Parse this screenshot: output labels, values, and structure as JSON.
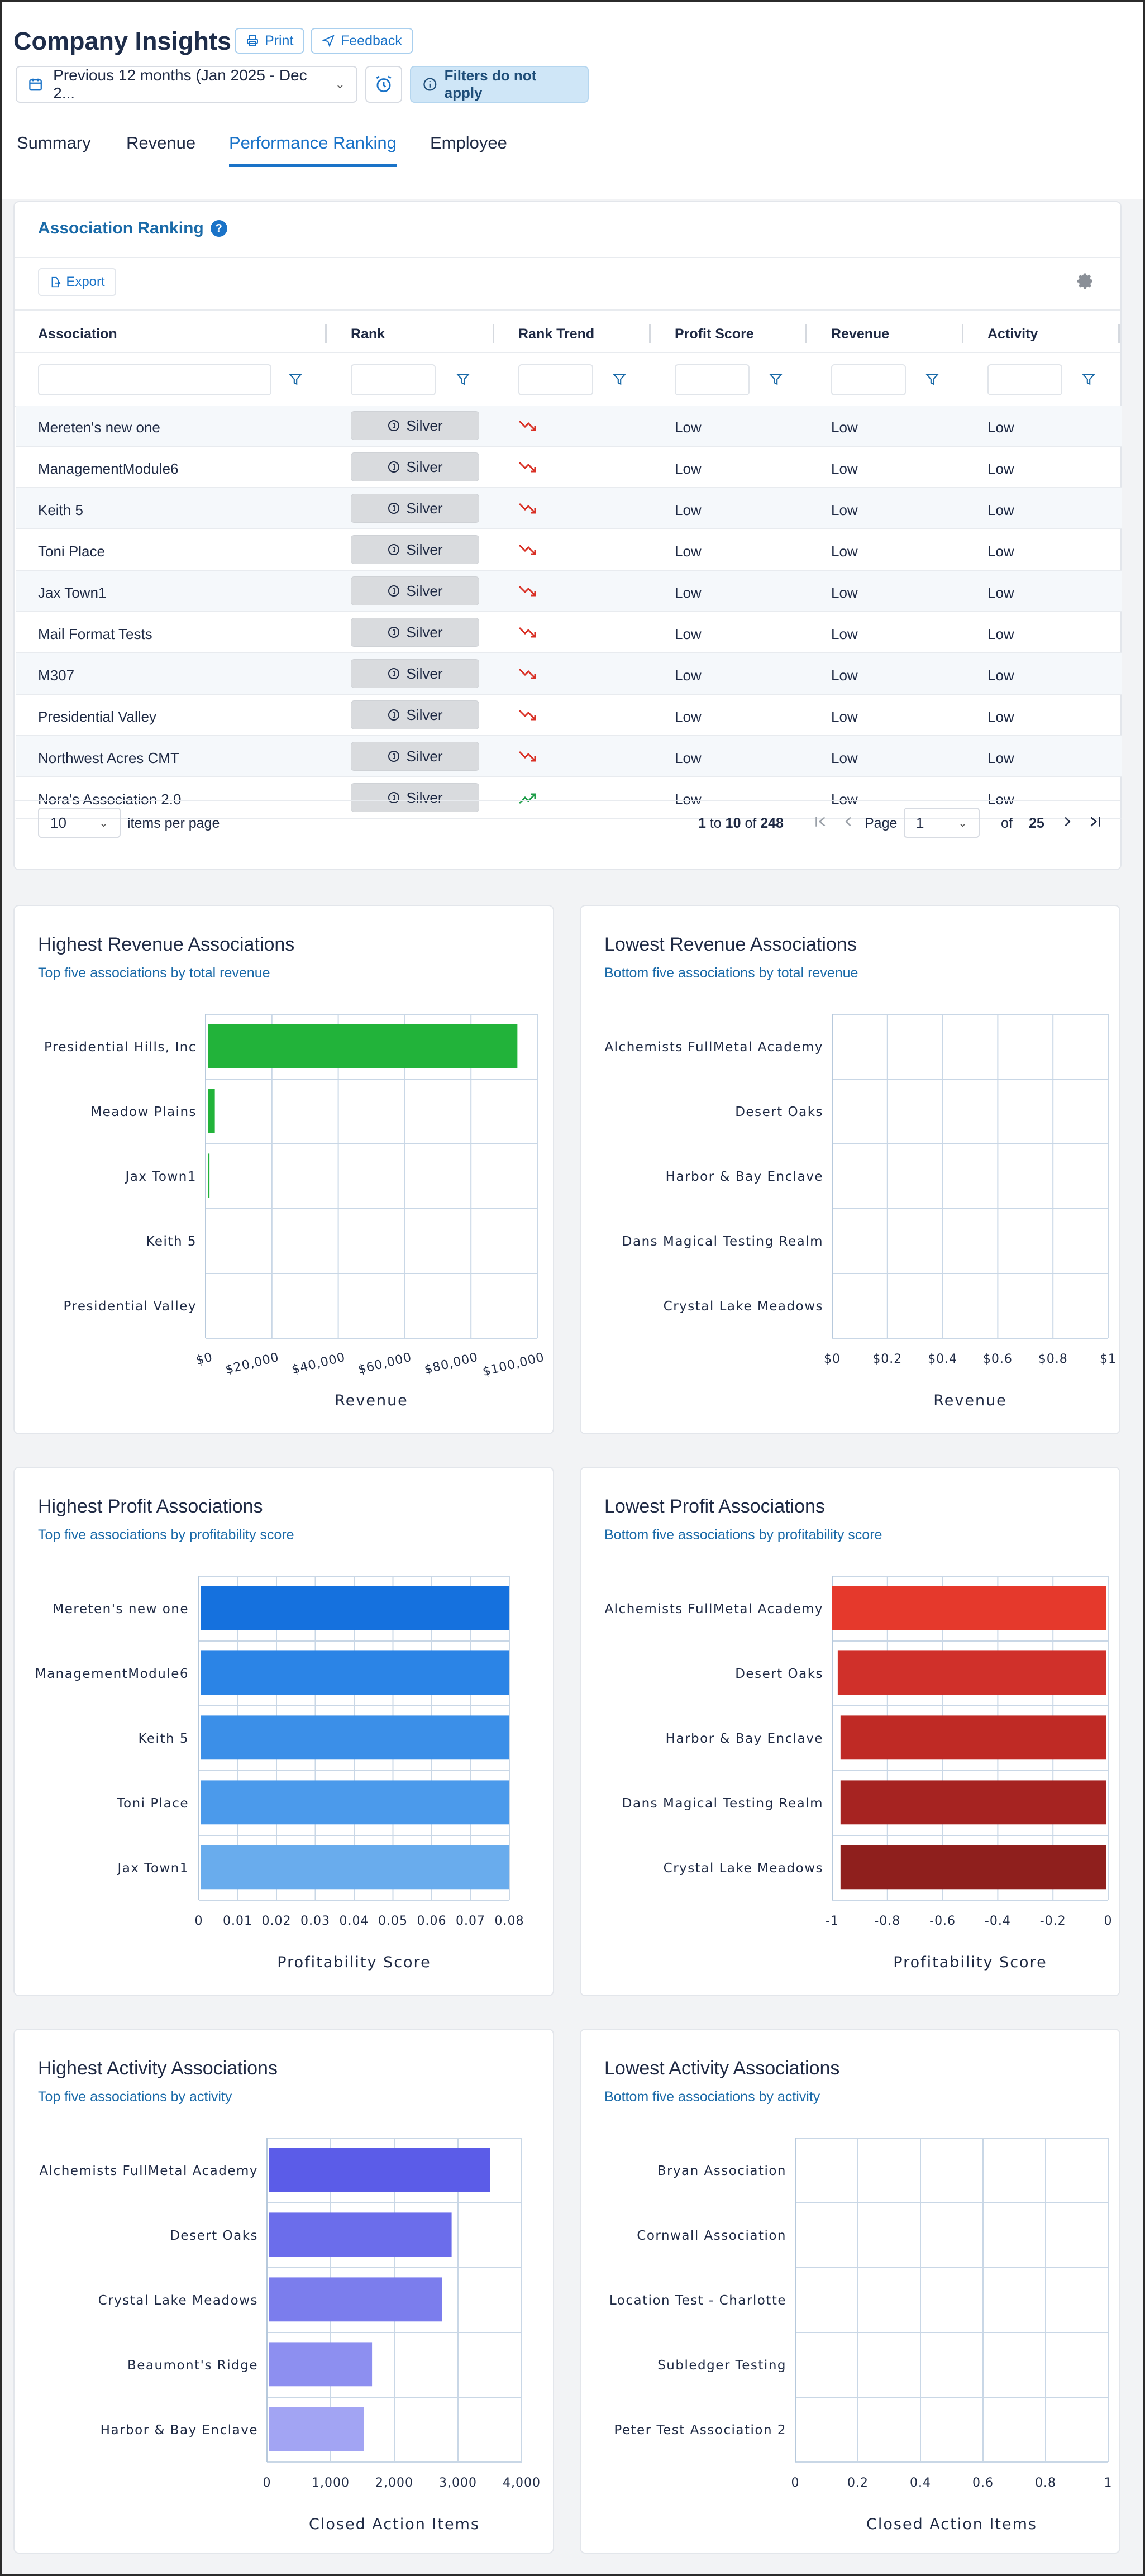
{
  "header": {
    "title": "Company Insights",
    "print_label": "Print",
    "feedback_label": "Feedback",
    "date_range": "Previous 12 months (Jan 2025 - Dec 2...",
    "filters_note": "Filters do not apply"
  },
  "tabs": [
    {
      "label": "Summary"
    },
    {
      "label": "Revenue"
    },
    {
      "label": "Performance Ranking",
      "active": true
    },
    {
      "label": "Employee"
    }
  ],
  "ranking": {
    "title": "Association Ranking",
    "help": "?",
    "export_label": "Export",
    "columns": [
      "Association",
      "Rank",
      "Rank Trend",
      "Profit Score",
      "Revenue",
      "Activity"
    ],
    "rows": [
      {
        "association": "Mereten's new one",
        "rank": "Silver",
        "trend": "down",
        "profit": "Low",
        "revenue": "Low",
        "activity": "Low"
      },
      {
        "association": "ManagementModule6",
        "rank": "Silver",
        "trend": "down",
        "profit": "Low",
        "revenue": "Low",
        "activity": "Low"
      },
      {
        "association": "Keith 5",
        "rank": "Silver",
        "trend": "down",
        "profit": "Low",
        "revenue": "Low",
        "activity": "Low"
      },
      {
        "association": "Toni Place",
        "rank": "Silver",
        "trend": "down",
        "profit": "Low",
        "revenue": "Low",
        "activity": "Low"
      },
      {
        "association": "Jax Town1",
        "rank": "Silver",
        "trend": "down",
        "profit": "Low",
        "revenue": "Low",
        "activity": "Low"
      },
      {
        "association": "Mail Format Tests",
        "rank": "Silver",
        "trend": "down",
        "profit": "Low",
        "revenue": "Low",
        "activity": "Low"
      },
      {
        "association": "M307",
        "rank": "Silver",
        "trend": "down",
        "profit": "Low",
        "revenue": "Low",
        "activity": "Low"
      },
      {
        "association": "Presidential Valley",
        "rank": "Silver",
        "trend": "down",
        "profit": "Low",
        "revenue": "Low",
        "activity": "Low"
      },
      {
        "association": "Northwest Acres CMT",
        "rank": "Silver",
        "trend": "down",
        "profit": "Low",
        "revenue": "Low",
        "activity": "Low"
      },
      {
        "association": "Nora's Association 2.0",
        "rank": "Silver",
        "trend": "up",
        "profit": "Low",
        "revenue": "Low",
        "activity": "Low"
      }
    ],
    "pager": {
      "page_size": "10",
      "items_per_page_label": "items per page",
      "range_from": "1",
      "range_to_label": "to",
      "range_to": "10",
      "of_label": "of",
      "total": "248",
      "page_label": "Page",
      "page": "1",
      "page_of_label": "of",
      "page_count": "25"
    }
  },
  "colors": {
    "accent": "#1a73c8",
    "trend_down": "#d93025",
    "trend_up": "#1e9e49",
    "revenue_bar": "#22b33a",
    "profit_high": [
      "#1571de",
      "#2b84e6",
      "#3b8fe8",
      "#4b9aeb",
      "#69aced"
    ],
    "profit_low": [
      "#e5392c",
      "#d0302a",
      "#bf2a25",
      "#a62321",
      "#8f1f1d"
    ],
    "activity": [
      "#5b5ce8",
      "#6b6deb",
      "#7b7ded",
      "#8d8ff0",
      "#a2a4f3"
    ]
  },
  "chart_data": [
    {
      "type": "bar",
      "orientation": "horizontal",
      "title": "Highest Revenue Associations",
      "subtitle": "Top five associations by total revenue",
      "categories": [
        "Presidential Hills, Inc",
        "Meadow Plains",
        "Jax Town1",
        "Keith 5",
        "Presidential Valley"
      ],
      "values": [
        94000,
        2800,
        1200,
        800,
        600
      ],
      "xlabel": "Revenue",
      "xlim": [
        0,
        100000
      ],
      "ticks": [
        "$0",
        "$20,000",
        "$40,000",
        "$60,000",
        "$80,000",
        "$100,000"
      ],
      "grid": true
    },
    {
      "type": "bar",
      "orientation": "horizontal",
      "title": "Lowest Revenue Associations",
      "subtitle": "Bottom five associations by total revenue",
      "categories": [
        "Alchemists FullMetal Academy",
        "Desert Oaks",
        "Harbor & Bay Enclave",
        "Dans Magical Testing Realm",
        "Crystal Lake Meadows"
      ],
      "values": [
        0,
        0,
        0,
        0,
        0
      ],
      "xlabel": "Revenue",
      "xlim": [
        0,
        1
      ],
      "ticks": [
        "$0",
        "$0.2",
        "$0.4",
        "$0.6",
        "$0.8",
        "$1"
      ],
      "grid": true
    },
    {
      "type": "bar",
      "orientation": "horizontal",
      "title": "Highest Profit Associations",
      "subtitle": "Top five associations by profitability score",
      "categories": [
        "Mereten's new one",
        "ManagementModule6",
        "Keith 5",
        "Toni Place",
        "Jax Town1"
      ],
      "values": [
        0.08,
        0.08,
        0.08,
        0.08,
        0.08
      ],
      "xlabel": "Profitability Score",
      "xlim": [
        0,
        0.08
      ],
      "ticks": [
        "0",
        "0.01",
        "0.02",
        "0.03",
        "0.04",
        "0.05",
        "0.06",
        "0.07",
        "0.08"
      ],
      "grid": true
    },
    {
      "type": "bar",
      "orientation": "horizontal",
      "title": "Lowest Profit Associations",
      "subtitle": "Bottom five associations by profitability score",
      "categories": [
        "Alchemists FullMetal Academy",
        "Desert Oaks",
        "Harbor & Bay Enclave",
        "Dans Magical Testing Realm",
        "Crystal Lake Meadows"
      ],
      "values": [
        -1.0,
        -0.98,
        -0.97,
        -0.97,
        -0.97
      ],
      "xlabel": "Profitability Score",
      "xlim": [
        -1,
        0
      ],
      "ticks": [
        "-1",
        "-0.8",
        "-0.6",
        "-0.4",
        "-0.2",
        "0"
      ],
      "grid": true
    },
    {
      "type": "bar",
      "orientation": "horizontal",
      "title": "Highest Activity Associations",
      "subtitle": "Top five associations by activity",
      "categories": [
        "Alchemists FullMetal Academy",
        "Desert Oaks",
        "Crystal Lake Meadows",
        "Beaumont's Ridge",
        "Harbor & Bay Enclave"
      ],
      "values": [
        3500,
        2900,
        2750,
        1650,
        1520
      ],
      "xlabel": "Closed Action Items",
      "xlim": [
        0,
        4000
      ],
      "ticks": [
        "0",
        "1,000",
        "2,000",
        "3,000",
        "4,000"
      ],
      "grid": true
    },
    {
      "type": "bar",
      "orientation": "horizontal",
      "title": "Lowest Activity Associations",
      "subtitle": "Bottom five associations by activity",
      "categories": [
        "Bryan Association",
        "Cornwall Association",
        "Location Test - Charlotte",
        "Subledger Testing",
        "Peter Test Association 2"
      ],
      "values": [
        0,
        0,
        0,
        0,
        0
      ],
      "xlabel": "Closed Action Items",
      "xlim": [
        0,
        1
      ],
      "ticks": [
        "0",
        "0.2",
        "0.4",
        "0.6",
        "0.8",
        "1"
      ],
      "grid": true
    }
  ]
}
